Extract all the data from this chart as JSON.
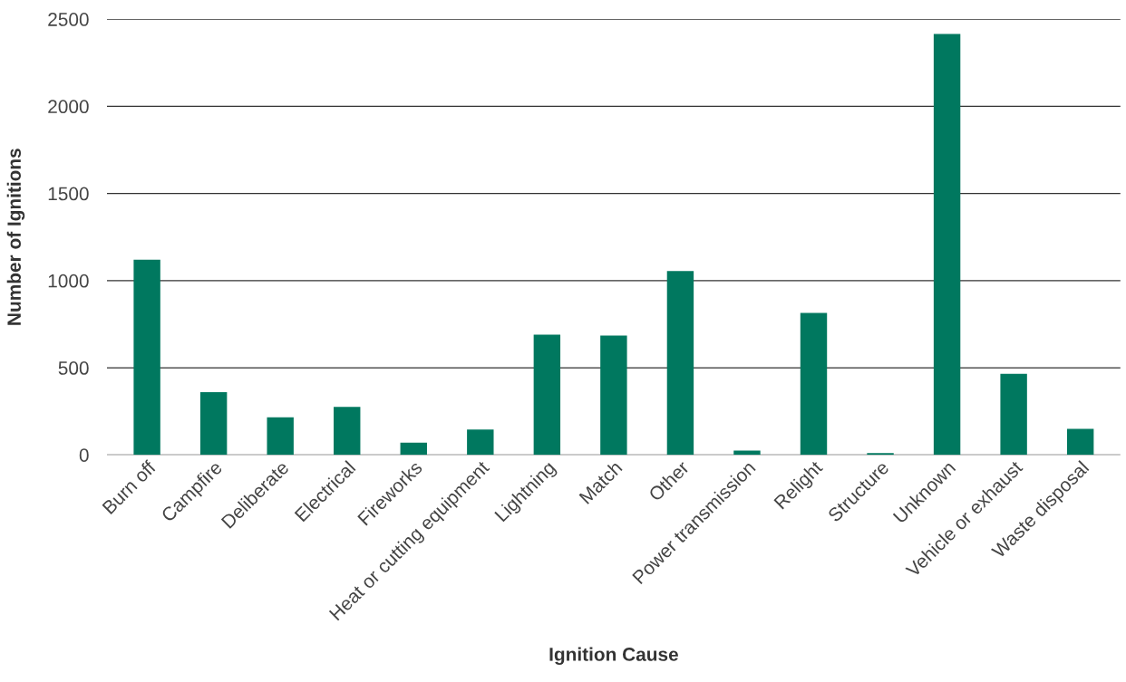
{
  "chart_data": {
    "type": "bar",
    "xlabel": "Ignition Cause",
    "ylabel": "Number of Ignitions",
    "categories": [
      "Burn off",
      "Campfire",
      "Deliberate",
      "Electrical",
      "Fireworks",
      "Heat or cutting equipment",
      "Lightning",
      "Match",
      "Other",
      "Power transmission",
      "Relight",
      "Structure",
      "Unknown",
      "Vehicle or exhaust",
      "Waste disposal"
    ],
    "values": [
      1120,
      360,
      215,
      275,
      70,
      145,
      690,
      685,
      1055,
      25,
      815,
      10,
      2415,
      465,
      150
    ],
    "color": "#00785f",
    "ylim": [
      0,
      2500
    ],
    "yticks": [
      0,
      500,
      1000,
      1500,
      2000,
      2500
    ],
    "grid": "y"
  }
}
